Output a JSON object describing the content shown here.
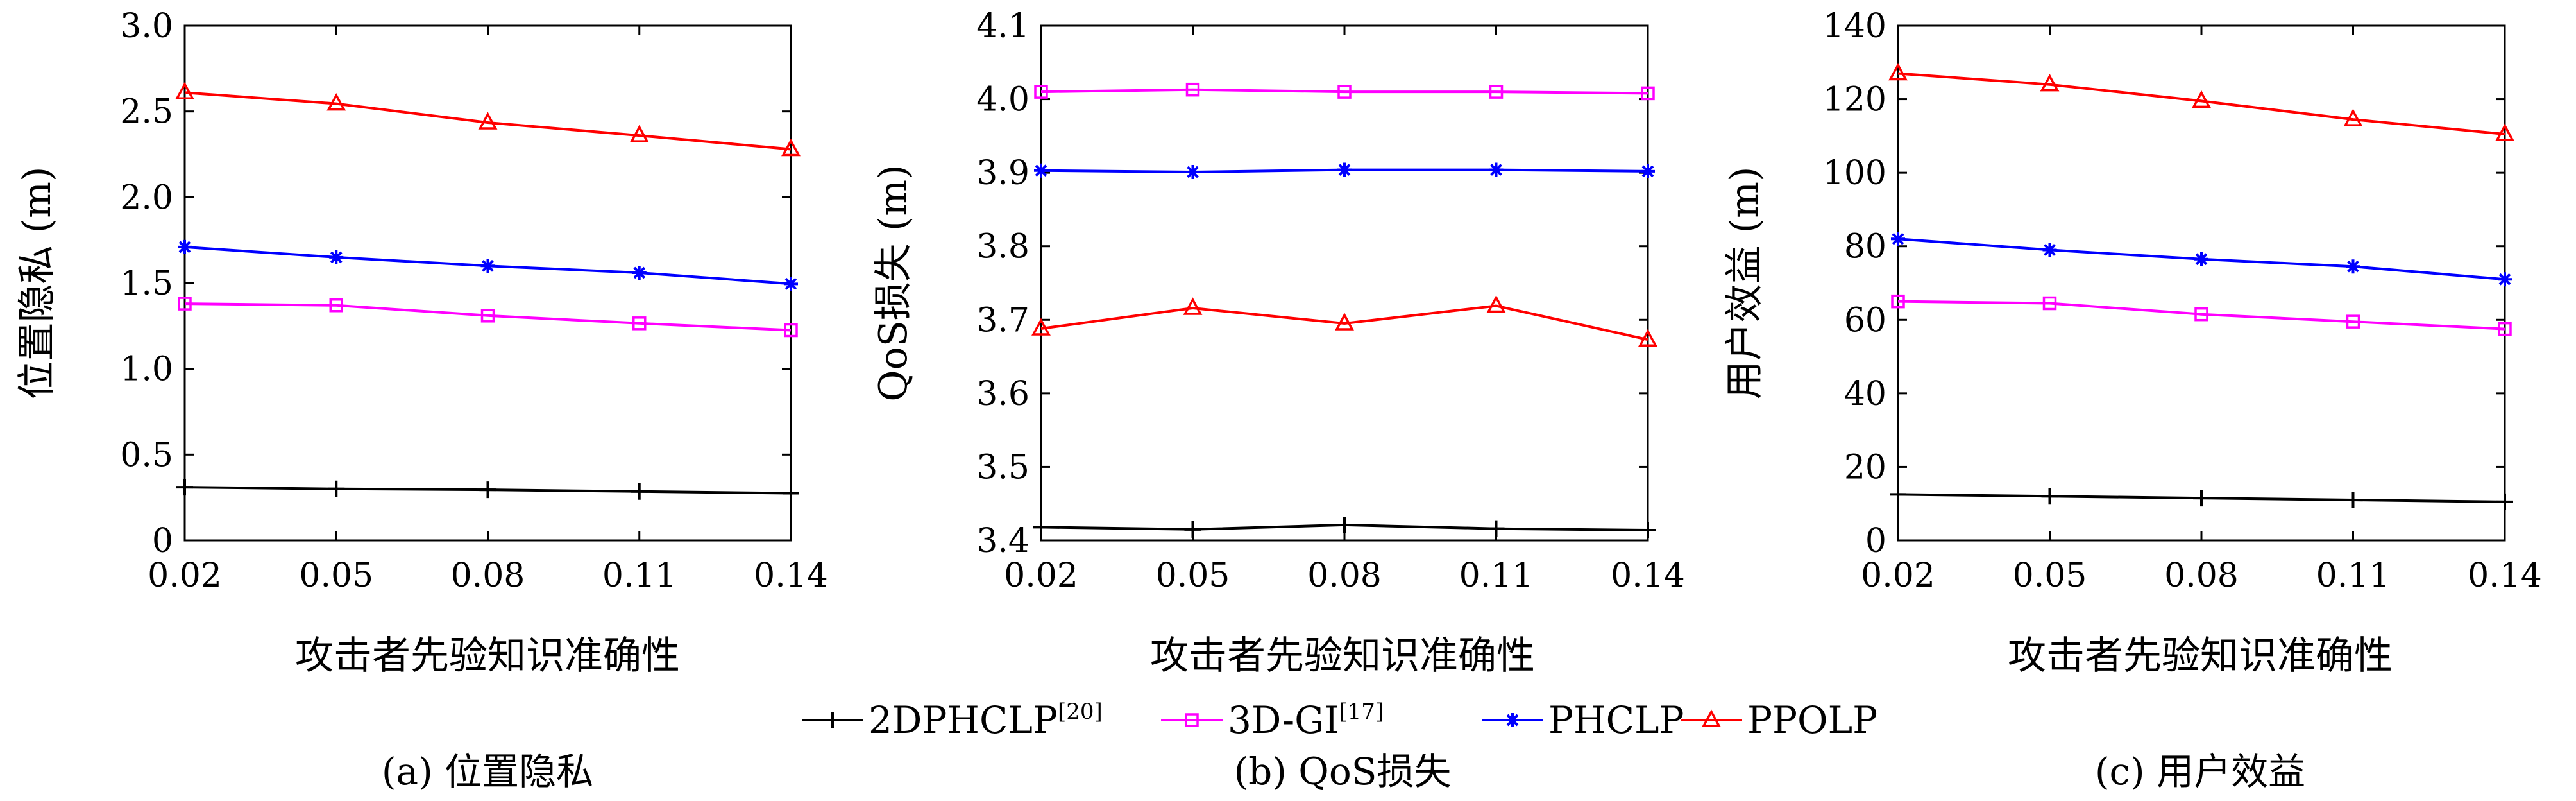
{
  "chart_data": [
    {
      "type": "line",
      "caption": "(a) 位置隐私",
      "xlabel": "攻击者先验知识准确性",
      "ylabel": "位置隐私 (m)",
      "x": [
        0.02,
        0.05,
        0.08,
        0.11,
        0.14
      ],
      "x_tick_labels": [
        "0.02",
        "0.05",
        "0.08",
        "0.11",
        "0.14"
      ],
      "ylim": [
        0,
        3.0
      ],
      "y_ticks": [
        0,
        0.5,
        1.0,
        1.5,
        2.0,
        2.5,
        3.0
      ],
      "y_tick_labels": [
        "0",
        "0.5",
        "1.0",
        "1.5",
        "2.0",
        "2.5",
        "3.0"
      ],
      "grid": false,
      "series": [
        {
          "key": "s2d",
          "values": [
            0.31,
            0.3,
            0.295,
            0.285,
            0.275
          ]
        },
        {
          "key": "s3d",
          "values": [
            1.38,
            1.37,
            1.31,
            1.265,
            1.225
          ]
        },
        {
          "key": "sph",
          "values": [
            1.71,
            1.65,
            1.6,
            1.56,
            1.495
          ]
        },
        {
          "key": "spp",
          "values": [
            2.61,
            2.545,
            2.435,
            2.36,
            2.28
          ]
        }
      ]
    },
    {
      "type": "line",
      "caption": "(b) QoS损失",
      "xlabel": "攻击者先验知识准确性",
      "ylabel": "QoS损失 (m)",
      "x": [
        0.02,
        0.05,
        0.08,
        0.11,
        0.14
      ],
      "x_tick_labels": [
        "0.02",
        "0.05",
        "0.08",
        "0.11",
        "0.14"
      ],
      "ylim": [
        3.4,
        4.1
      ],
      "y_ticks": [
        3.4,
        3.5,
        3.6,
        3.7,
        3.8,
        3.9,
        4.0,
        4.1
      ],
      "y_tick_labels": [
        "3.4",
        "3.5",
        "3.6",
        "3.7",
        "3.8",
        "3.9",
        "4.0",
        "4.1"
      ],
      "grid": false,
      "series": [
        {
          "key": "s2d",
          "values": [
            3.418,
            3.415,
            3.421,
            3.416,
            3.414
          ]
        },
        {
          "key": "s3d",
          "values": [
            4.01,
            4.013,
            4.01,
            4.01,
            4.008
          ]
        },
        {
          "key": "sph",
          "values": [
            3.903,
            3.901,
            3.904,
            3.904,
            3.902
          ]
        },
        {
          "key": "spp",
          "values": [
            3.688,
            3.716,
            3.695,
            3.719,
            3.673
          ]
        }
      ]
    },
    {
      "type": "line",
      "caption": "(c) 用户效益",
      "xlabel": "攻击者先验知识准确性",
      "ylabel": "用户效益 (m)",
      "x": [
        0.02,
        0.05,
        0.08,
        0.11,
        0.14
      ],
      "x_tick_labels": [
        "0.02",
        "0.05",
        "0.08",
        "0.11",
        "0.14"
      ],
      "ylim": [
        0,
        140
      ],
      "y_ticks": [
        0,
        20,
        40,
        60,
        80,
        100,
        120,
        140
      ],
      "y_tick_labels": [
        "0",
        "20",
        "40",
        "60",
        "80",
        "100",
        "120",
        "140"
      ],
      "grid": false,
      "series": [
        {
          "key": "s2d",
          "values": [
            12.5,
            12.0,
            11.5,
            11.0,
            10.5
          ]
        },
        {
          "key": "s3d",
          "values": [
            65.0,
            64.5,
            61.5,
            59.5,
            57.5
          ]
        },
        {
          "key": "sph",
          "values": [
            82.0,
            79.0,
            76.5,
            74.5,
            71.0
          ]
        },
        {
          "key": "spp",
          "values": [
            127.0,
            124.0,
            119.5,
            114.5,
            110.5
          ]
        }
      ]
    }
  ],
  "legend": {
    "placement": "bottom-center",
    "entries": [
      {
        "key": "s2d",
        "label": "2DPHCLP",
        "sup": "[20]",
        "color": "#000000",
        "marker": "plus"
      },
      {
        "key": "s3d",
        "label": "3D-GI",
        "sup": "[17]",
        "color": "#ff00ff",
        "marker": "square"
      },
      {
        "key": "sph",
        "label": "PHCLP",
        "sup": "",
        "color": "#0000ff",
        "marker": "star"
      },
      {
        "key": "spp",
        "label": "PPOLP",
        "sup": "",
        "color": "#ff0000",
        "marker": "triangle"
      }
    ]
  }
}
